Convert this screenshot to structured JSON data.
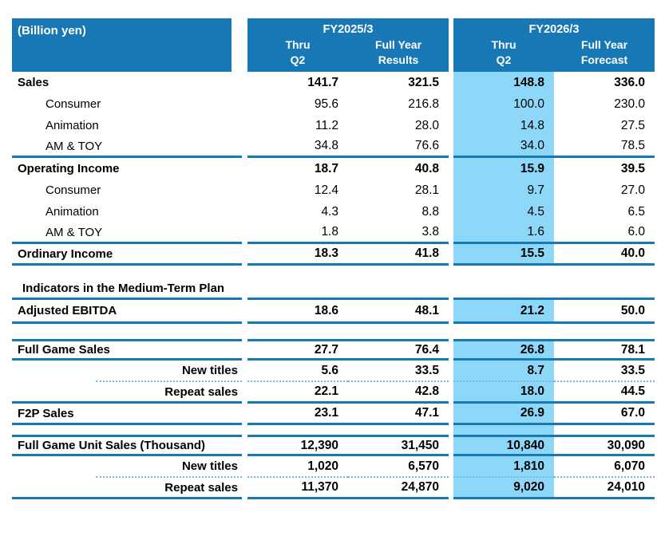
{
  "colors": {
    "header_blue": "#1878B6",
    "separator_line_blue": "#1778B4",
    "dotted_line_blue": "#74B9D9",
    "highlight_light_blue": "#8DD8F8",
    "header_text": "#FFFFFF",
    "body_text": "#000000"
  },
  "table": {
    "unit_label": "(Billion yen)",
    "groups": [
      {
        "title": "FY2025/3",
        "cols": [
          {
            "line1": "Thru",
            "line2": "Q2"
          },
          {
            "line1": "Full Year",
            "line2": "Results"
          }
        ]
      },
      {
        "title": "FY2026/3",
        "cols": [
          {
            "line1": "Thru",
            "line2": "Q2"
          },
          {
            "line1": "Full Year",
            "line2": "Forecast"
          }
        ]
      }
    ],
    "highlighted_column": "FY2026/3 Thru Q2",
    "rows": [
      {
        "label": "Sales",
        "bold": true,
        "hl": true,
        "values": [
          "141.7",
          "321.5",
          "148.8",
          "336.0"
        ]
      },
      {
        "label": "Consumer",
        "indent": true,
        "hl": true,
        "values": [
          "95.6",
          "216.8",
          "100.0",
          "230.0"
        ]
      },
      {
        "label": "Animation",
        "indent": true,
        "hl": true,
        "values": [
          "11.2",
          "28.0",
          "14.8",
          "27.5"
        ]
      },
      {
        "label": "AM & TOY",
        "indent": true,
        "hl": true,
        "bb": "dark",
        "values": [
          "34.8",
          "76.6",
          "34.0",
          "78.5"
        ]
      },
      {
        "label": "Operating Income",
        "bold": true,
        "hl": true,
        "values": [
          "18.7",
          "40.8",
          "15.9",
          "39.5"
        ]
      },
      {
        "label": "Consumer",
        "indent": true,
        "hl": true,
        "values": [
          "12.4",
          "28.1",
          "9.7",
          "27.0"
        ]
      },
      {
        "label": "Animation",
        "indent": true,
        "hl": true,
        "values": [
          "4.3",
          "8.8",
          "4.5",
          "6.5"
        ]
      },
      {
        "label": "AM & TOY",
        "indent": true,
        "hl": true,
        "bb": "dark",
        "values": [
          "1.8",
          "3.8",
          "1.6",
          "6.0"
        ]
      },
      {
        "label": "Ordinary Income",
        "bold": true,
        "hl": true,
        "bb": "dark",
        "values": [
          "18.3",
          "41.8",
          "15.5",
          "40.0"
        ]
      },
      {
        "type": "gap",
        "h": 16
      },
      {
        "label": "Indicators in the Medium-Term Plan",
        "heading": true,
        "bold": true,
        "bb": "dark",
        "values": [
          "",
          "",
          "",
          ""
        ]
      },
      {
        "label": "Adjusted EBITDA",
        "bold": true,
        "hl": true,
        "bb": "dark",
        "h": 30,
        "values": [
          "18.6",
          "48.1",
          "21.2",
          "50.0"
        ]
      },
      {
        "type": "gap",
        "h": 19
      },
      {
        "label": "Full Game Sales",
        "bold": true,
        "hl": true,
        "bt": "dark",
        "bb": "dark",
        "values": [
          "27.7",
          "76.4",
          "26.8",
          "78.1"
        ]
      },
      {
        "label": "New titles",
        "bold": true,
        "ralign": true,
        "inset": true,
        "hl": true,
        "bb": "dot",
        "values": [
          "5.6",
          "33.5",
          "8.7",
          "33.5"
        ]
      },
      {
        "label": "Repeat sales",
        "bold": true,
        "ralign": true,
        "hl": true,
        "bb": "dark",
        "values": [
          "22.1",
          "42.8",
          "18.0",
          "44.5"
        ]
      },
      {
        "label": "F2P Sales",
        "bold": true,
        "hl": true,
        "bb": "dark",
        "values": [
          "23.1",
          "47.1",
          "26.9",
          "67.0"
        ]
      },
      {
        "type": "gap",
        "h": 12,
        "hl": true
      },
      {
        "label": "Full Game Unit Sales (Thousand)",
        "bold": true,
        "hl": true,
        "bt": "dark",
        "bb": "dark",
        "values": [
          "12,390",
          "31,450",
          "10,840",
          "30,090"
        ]
      },
      {
        "label": "New titles",
        "bold": true,
        "ralign": true,
        "inset": true,
        "hl": true,
        "bb": "dot",
        "values": [
          "1,020",
          "6,570",
          "1,810",
          "6,070"
        ]
      },
      {
        "label": "Repeat sales",
        "bold": true,
        "ralign": true,
        "hl": true,
        "bb": "dark",
        "values": [
          "11,370",
          "24,870",
          "9,020",
          "24,010"
        ]
      }
    ]
  }
}
